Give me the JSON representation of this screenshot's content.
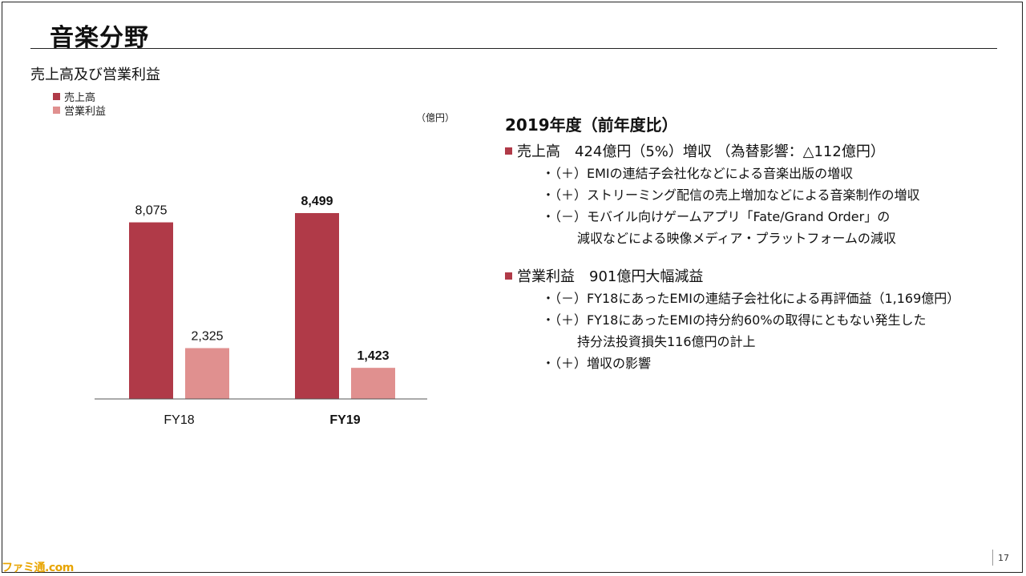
{
  "header": {
    "title": "音楽分野"
  },
  "chart_heading": "売上高及び営業利益",
  "legend": [
    {
      "label": "売上高",
      "color": "#b03a48"
    },
    {
      "label": "営業利益",
      "color": "#e0908f"
    }
  ],
  "unit_label": "（億円）",
  "chart_data": {
    "type": "bar",
    "categories": [
      "FY18",
      "FY19"
    ],
    "series": [
      {
        "name": "売上高",
        "values": [
          8075,
          8499
        ],
        "color": "#b03a48"
      },
      {
        "name": "営業利益",
        "values": [
          2325,
          1423
        ],
        "color": "#e0908f"
      }
    ],
    "value_labels": [
      [
        "8,075",
        "8,499"
      ],
      [
        "2,325",
        "1,423"
      ]
    ],
    "bold_category": "FY19",
    "title": "売上高及び営業利益",
    "ylabel": "（億円）",
    "ylim": [
      0,
      10000
    ],
    "grid": false,
    "legend_position": "top-left"
  },
  "summary": {
    "year_heading": "2019年度（前年度比）",
    "sales": {
      "head": "売上高　424億円（5%）増収 （為替影響：△112億円）",
      "bullets": [
        "・（＋）EMIの連結子会社化などによる音楽出版の増収",
        "・（＋）ストリーミング配信の売上増加などによる音楽制作の増収",
        "・（－）モバイル向けゲームアプリ「Fate/Grand Order」の",
        "減収などによる映像メディア・プラットフォームの減収"
      ]
    },
    "profit": {
      "head": "営業利益　901億円大幅減益",
      "bullets": [
        "・（－）FY18にあったEMIの連結子会社化による再評価益（1,169億円）",
        "・（＋）FY18にあったEMIの持分約60%の取得にともない発生した",
        "持分法投資損失116億円の計上",
        "・（＋）増収の影響"
      ]
    }
  },
  "page_number": "17",
  "watermark": "ファミ通.com"
}
